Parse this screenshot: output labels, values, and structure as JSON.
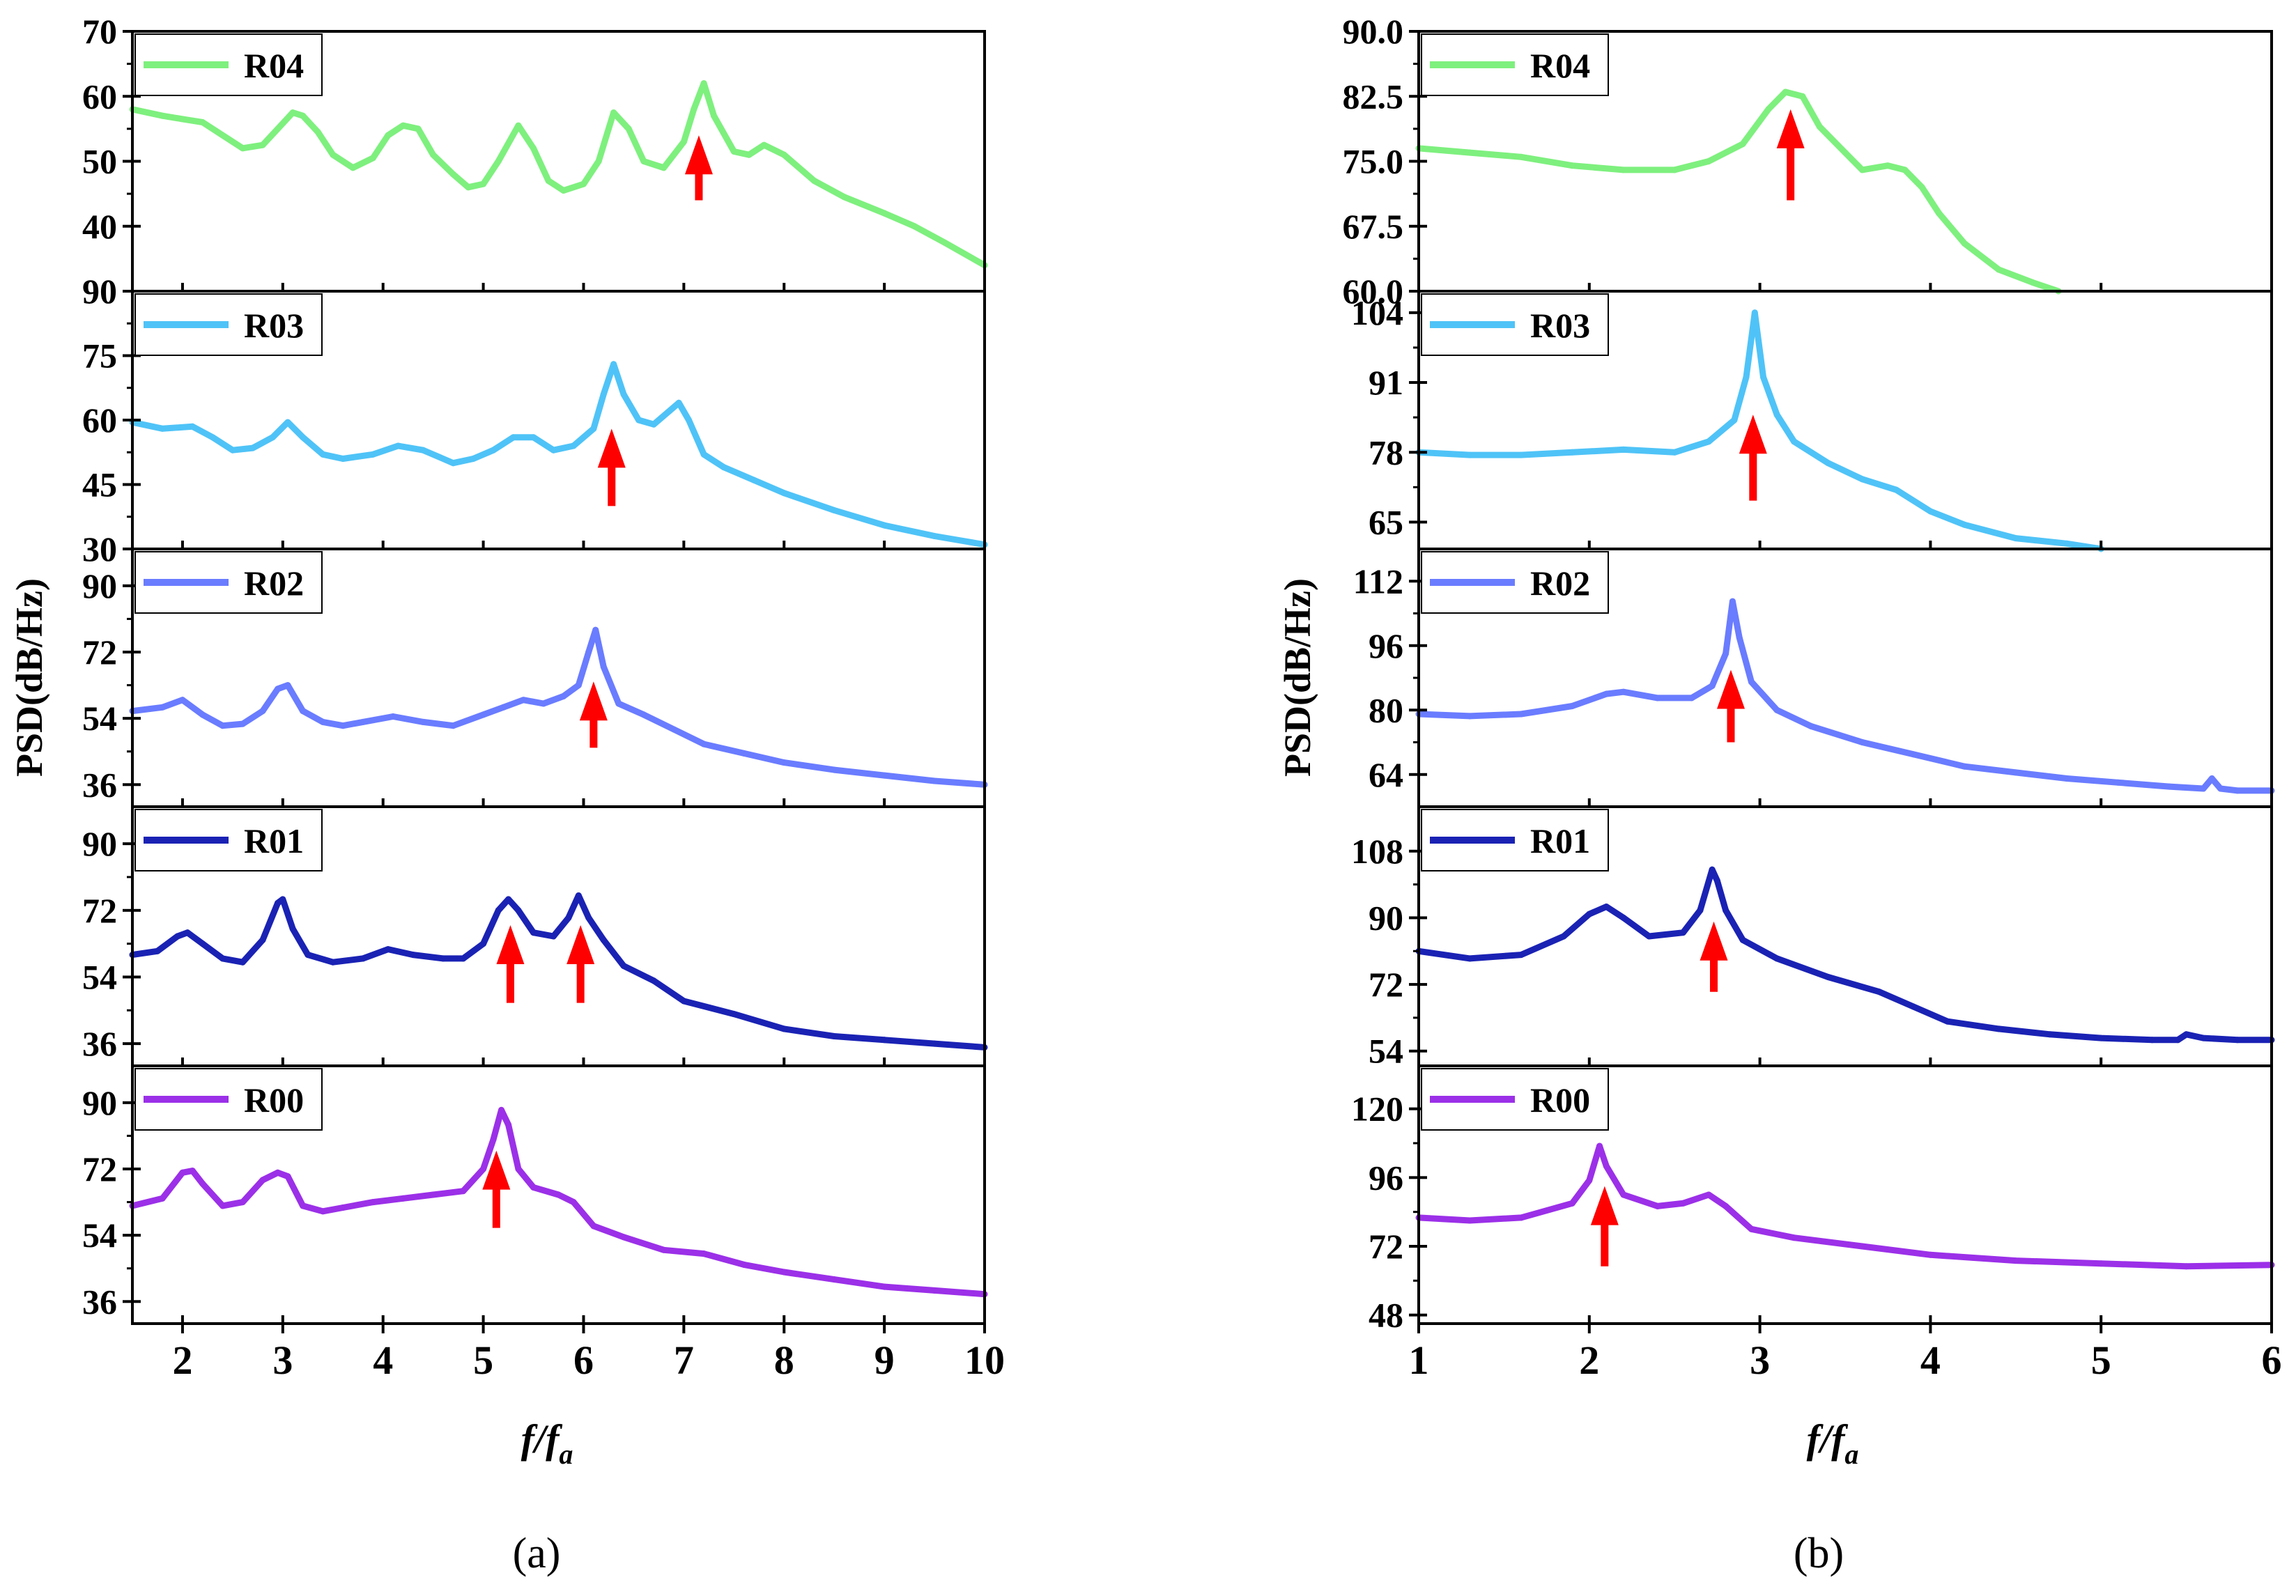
{
  "chart_data": [
    {
      "type": "line",
      "caption": "(a)",
      "xlabel_main": "f",
      "xlabel_sep": "/",
      "xlabel_base": "f",
      "xlabel_sub": "a",
      "ylabel": "PSD(dB/Hz)",
      "xlim": [
        1.5,
        10
      ],
      "xticks": [
        2,
        3,
        4,
        5,
        6,
        7,
        8,
        9,
        10
      ],
      "xtick_labels": [
        "2",
        "3",
        "4",
        "5",
        "6",
        "7",
        "8",
        "9",
        "10"
      ],
      "panels": [
        {
          "series": "R04",
          "color": "#7ef07e",
          "ylim": [
            30,
            70
          ],
          "yticks": [
            40,
            50,
            60,
            70
          ],
          "ytick_labels": [
            "40",
            "50",
            "60",
            "70"
          ],
          "x": [
            1.5,
            1.8,
            2.0,
            2.2,
            2.4,
            2.6,
            2.8,
            2.95,
            3.1,
            3.2,
            3.35,
            3.5,
            3.7,
            3.9,
            4.05,
            4.2,
            4.35,
            4.5,
            4.7,
            4.85,
            5.0,
            5.15,
            5.35,
            5.5,
            5.65,
            5.8,
            6.0,
            6.15,
            6.3,
            6.45,
            6.6,
            6.8,
            7.0,
            7.1,
            7.2,
            7.3,
            7.5,
            7.65,
            7.8,
            8.0,
            8.3,
            8.6,
            9.0,
            9.3,
            9.6,
            10.0
          ],
          "y": [
            58,
            57,
            56.5,
            56,
            54,
            52,
            52.5,
            55,
            57.5,
            57,
            54.5,
            51,
            49,
            50.5,
            54,
            55.5,
            55,
            51,
            48,
            46,
            46.5,
            50,
            55.5,
            52,
            47,
            45.5,
            46.5,
            50,
            57.5,
            55,
            50,
            49,
            53,
            58,
            62,
            57,
            51.5,
            51,
            52.5,
            51,
            47,
            44.5,
            42,
            40,
            37.5,
            34
          ],
          "arrows": [
            {
              "x": 7.15,
              "y_tip": 54,
              "y_tail": 44
            }
          ]
        },
        {
          "series": "R03",
          "color": "#4fc3f7",
          "ylim": [
            30,
            90
          ],
          "yticks": [
            30,
            45,
            60,
            75,
            90
          ],
          "ytick_labels": [
            "30",
            "45",
            "60",
            "75",
            "90"
          ],
          "x": [
            1.5,
            1.8,
            2.1,
            2.3,
            2.5,
            2.7,
            2.9,
            3.05,
            3.2,
            3.4,
            3.6,
            3.9,
            4.15,
            4.4,
            4.7,
            4.9,
            5.1,
            5.3,
            5.5,
            5.7,
            5.9,
            6.1,
            6.2,
            6.3,
            6.4,
            6.55,
            6.7,
            6.85,
            6.95,
            7.05,
            7.2,
            7.4,
            7.7,
            8.0,
            8.5,
            9.0,
            9.5,
            10.0
          ],
          "y": [
            59.5,
            58,
            58.5,
            56,
            53,
            53.5,
            56,
            59.5,
            56,
            52,
            51,
            52,
            54,
            53,
            50,
            51,
            53,
            56,
            56,
            53,
            54,
            58,
            66,
            73,
            66,
            60,
            59,
            62,
            64,
            60,
            52,
            49,
            46,
            43,
            39,
            35.5,
            33,
            31
          ],
          "arrows": [
            {
              "x": 6.28,
              "y_tip": 58,
              "y_tail": 40
            }
          ]
        },
        {
          "series": "R02",
          "color": "#6a7cff",
          "ylim": [
            30,
            100
          ],
          "yticks": [
            36,
            54,
            72,
            90
          ],
          "ytick_labels": [
            "36",
            "54",
            "72",
            "90"
          ],
          "x": [
            1.5,
            1.8,
            2.0,
            2.2,
            2.4,
            2.6,
            2.8,
            2.95,
            3.05,
            3.2,
            3.4,
            3.6,
            3.8,
            4.1,
            4.4,
            4.7,
            5.0,
            5.2,
            5.4,
            5.6,
            5.8,
            5.95,
            6.05,
            6.12,
            6.2,
            6.35,
            6.6,
            6.9,
            7.2,
            7.6,
            8.0,
            8.5,
            9.0,
            9.5,
            10.0
          ],
          "y": [
            56,
            57,
            59,
            55,
            52,
            52.5,
            56,
            62,
            63,
            56,
            53,
            52,
            53,
            54.5,
            53,
            52,
            55,
            57,
            59,
            58,
            60,
            63,
            72,
            78,
            68,
            58,
            55,
            51,
            47,
            44.5,
            42,
            40,
            38.5,
            37,
            36
          ],
          "arrows": [
            {
              "x": 6.1,
              "y_tip": 64,
              "y_tail": 46
            }
          ]
        },
        {
          "series": "R01",
          "color": "#1a22b4",
          "ylim": [
            30,
            100
          ],
          "yticks": [
            36,
            54,
            72,
            90
          ],
          "ytick_labels": [
            "36",
            "54",
            "72",
            "90"
          ],
          "x": [
            1.5,
            1.75,
            1.95,
            2.05,
            2.2,
            2.4,
            2.6,
            2.8,
            2.95,
            3.0,
            3.1,
            3.25,
            3.5,
            3.8,
            4.05,
            4.3,
            4.6,
            4.8,
            5.0,
            5.15,
            5.25,
            5.35,
            5.5,
            5.7,
            5.85,
            5.95,
            6.05,
            6.2,
            6.4,
            6.7,
            7.0,
            7.5,
            8.0,
            8.5,
            9.0,
            9.5,
            10.0
          ],
          "y": [
            60,
            61,
            65,
            66,
            63,
            59,
            58,
            64,
            74,
            75,
            67,
            60,
            58,
            59,
            61.5,
            60,
            59,
            59,
            63,
            72,
            75,
            72,
            66,
            65,
            70,
            76,
            70,
            64,
            57,
            53,
            47.5,
            44,
            40,
            38,
            37,
            36,
            35
          ],
          "arrows": [
            {
              "x": 5.27,
              "y_tip": 68,
              "y_tail": 47
            },
            {
              "x": 5.97,
              "y_tip": 68,
              "y_tail": 47
            }
          ]
        },
        {
          "series": "R00",
          "color": "#9b30e8",
          "ylim": [
            30,
            100
          ],
          "yticks": [
            36,
            54,
            72,
            90
          ],
          "ytick_labels": [
            "36",
            "54",
            "72",
            "90"
          ],
          "x": [
            1.5,
            1.8,
            2.0,
            2.1,
            2.2,
            2.4,
            2.6,
            2.8,
            2.95,
            3.05,
            3.2,
            3.4,
            3.6,
            3.9,
            4.2,
            4.5,
            4.8,
            5.0,
            5.1,
            5.18,
            5.25,
            5.35,
            5.5,
            5.75,
            5.9,
            6.1,
            6.4,
            6.8,
            7.2,
            7.6,
            8.0,
            8.5,
            9.0,
            9.5,
            10.0
          ],
          "y": [
            62,
            64,
            71,
            71.5,
            68,
            62,
            63,
            69,
            71,
            70,
            62,
            60.5,
            61.5,
            63,
            64,
            65,
            66,
            72,
            80,
            88,
            84,
            72,
            67,
            65,
            63,
            56.5,
            53.5,
            50,
            49,
            46,
            44,
            42,
            40,
            39,
            38
          ],
          "arrows": [
            {
              "x": 5.13,
              "y_tip": 77,
              "y_tail": 56
            }
          ]
        }
      ]
    },
    {
      "type": "line",
      "caption": "(b)",
      "xlabel_main": "f",
      "xlabel_sep": "/",
      "xlabel_base": "f",
      "xlabel_sub": "a",
      "ylabel": "PSD(dB/Hz)",
      "xlim": [
        1,
        6
      ],
      "xticks": [
        1,
        2,
        3,
        4,
        5,
        6
      ],
      "xtick_labels": [
        "1",
        "2",
        "3",
        "4",
        "5",
        "6"
      ],
      "panels": [
        {
          "series": "R04",
          "color": "#7ef07e",
          "ylim": [
            60,
            90
          ],
          "yticks": [
            60,
            67.5,
            75,
            82.5,
            90
          ],
          "ytick_labels": [
            "60.0",
            "67.5",
            "75.0",
            "82.5",
            "90.0"
          ],
          "x": [
            1.0,
            1.3,
            1.6,
            1.9,
            2.2,
            2.5,
            2.7,
            2.9,
            3.05,
            3.15,
            3.25,
            3.35,
            3.5,
            3.6,
            3.75,
            3.85,
            3.95,
            4.05,
            4.2,
            4.4,
            4.6,
            4.75
          ],
          "y": [
            76.5,
            76,
            75.5,
            74.5,
            74,
            74,
            75,
            77,
            81,
            83,
            82.5,
            79,
            76,
            74,
            74.5,
            74,
            72,
            69,
            65.5,
            62.5,
            61,
            60
          ],
          "arrows": [
            {
              "x": 3.18,
              "y_tip": 81,
              "y_tail": 70.5
            }
          ]
        },
        {
          "series": "R03",
          "color": "#4fc3f7",
          "ylim": [
            60,
            108
          ],
          "yticks": [
            65,
            78,
            91,
            104
          ],
          "ytick_labels": [
            "65",
            "78",
            "91",
            "104"
          ],
          "x": [
            1.0,
            1.3,
            1.6,
            1.9,
            2.2,
            2.5,
            2.7,
            2.85,
            2.92,
            2.97,
            3.02,
            3.1,
            3.2,
            3.4,
            3.6,
            3.8,
            4.0,
            4.2,
            4.5,
            4.8,
            5.0
          ],
          "y": [
            78,
            77.5,
            77.5,
            78,
            78.5,
            78,
            80,
            84,
            92,
            104,
            92,
            85,
            80,
            76,
            73,
            71,
            67,
            64.5,
            62,
            61,
            60
          ],
          "arrows": [
            {
              "x": 2.96,
              "y_tip": 85,
              "y_tail": 69
            }
          ]
        },
        {
          "series": "R02",
          "color": "#6a7cff",
          "ylim": [
            56,
            120
          ],
          "yticks": [
            64,
            80,
            96,
            112
          ],
          "ytick_labels": [
            "64",
            "80",
            "96",
            "112"
          ],
          "x": [
            1.0,
            1.3,
            1.6,
            1.9,
            2.1,
            2.2,
            2.4,
            2.6,
            2.72,
            2.8,
            2.84,
            2.88,
            2.95,
            3.1,
            3.3,
            3.6,
            3.9,
            4.2,
            4.5,
            4.8,
            5.1,
            5.4,
            5.6,
            5.65,
            5.7,
            5.8,
            6.0
          ],
          "y": [
            79,
            78.5,
            79,
            81,
            84,
            84.5,
            83,
            83,
            86,
            94,
            107,
            98,
            87,
            80,
            76,
            72,
            69,
            66,
            64.5,
            63,
            62,
            61,
            60.5,
            63,
            60.5,
            60,
            60
          ],
          "arrows": [
            {
              "x": 2.83,
              "y_tip": 90,
              "y_tail": 72
            }
          ]
        },
        {
          "series": "R01",
          "color": "#1a22b4",
          "ylim": [
            50,
            120
          ],
          "yticks": [
            54,
            72,
            90,
            108
          ],
          "ytick_labels": [
            "54",
            "72",
            "90",
            "108"
          ],
          "x": [
            1.0,
            1.3,
            1.6,
            1.85,
            2.0,
            2.1,
            2.2,
            2.35,
            2.55,
            2.65,
            2.72,
            2.75,
            2.8,
            2.9,
            3.1,
            3.4,
            3.7,
            3.9,
            4.1,
            4.4,
            4.7,
            5.0,
            5.3,
            5.45,
            5.5,
            5.6,
            5.8,
            6.0
          ],
          "y": [
            81,
            79,
            80,
            85,
            91,
            93,
            90,
            85,
            86,
            92,
            103,
            100,
            92,
            84,
            79,
            74,
            70,
            66,
            62,
            60,
            58.5,
            57.5,
            57,
            57,
            58.5,
            57.5,
            57,
            57
          ],
          "arrows": [
            {
              "x": 2.73,
              "y_tip": 89,
              "y_tail": 70
            }
          ]
        },
        {
          "series": "R00",
          "color": "#9b30e8",
          "ylim": [
            45,
            135
          ],
          "yticks": [
            48,
            72,
            96,
            120
          ],
          "ytick_labels": [
            "48",
            "72",
            "96",
            "120"
          ],
          "x": [
            1.0,
            1.3,
            1.6,
            1.9,
            2.0,
            2.06,
            2.1,
            2.2,
            2.4,
            2.55,
            2.7,
            2.8,
            2.95,
            3.2,
            3.6,
            4.0,
            4.5,
            5.0,
            5.5,
            6.0
          ],
          "y": [
            82,
            81,
            82,
            87,
            95,
            107,
            100,
            90,
            86,
            87,
            90,
            86,
            78,
            75,
            72,
            69,
            67,
            66,
            65,
            65.5
          ],
          "arrows": [
            {
              "x": 2.09,
              "y_tip": 93,
              "y_tail": 65
            }
          ]
        }
      ]
    }
  ]
}
